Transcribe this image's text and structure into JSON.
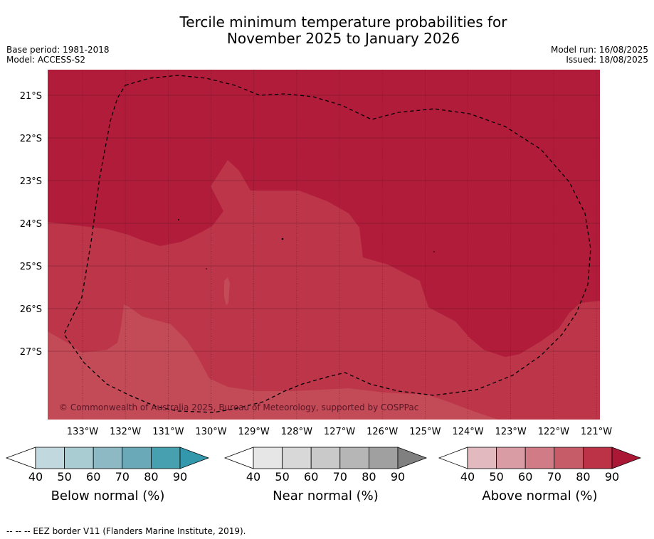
{
  "title_line1": "Tercile minimum temperature probabilities for",
  "title_line2": "November 2025 to January 2026",
  "base_period": "Base period: 1981-2018",
  "model": "Model: ACCESS-S2",
  "model_run": "Model run: 16/08/2025",
  "issued": "Issued: 18/08/2025",
  "copyright": "© Commonwealth of Australia 2025, Bureau of Meteorology, supported by COSPPac",
  "footer": "--  --  -- EEZ border V11 (Flanders Marine Institute, 2019).",
  "lat_ticks": [
    "21°S",
    "22°S",
    "23°S",
    "24°S",
    "25°S",
    "26°S",
    "27°S"
  ],
  "lon_ticks": [
    "133°W",
    "132°W",
    "131°W",
    "130°W",
    "129°W",
    "128°W",
    "127°W",
    "126°W",
    "125°W",
    "124°W",
    "123°W",
    "122°W",
    "121°W"
  ],
  "colorbars": [
    {
      "label": "Below normal (%)",
      "ticks": [
        "40",
        "50",
        "60",
        "70",
        "80",
        "90"
      ],
      "colors": [
        "#ffffff",
        "#c1d9de",
        "#a9cbd2",
        "#8db9c4",
        "#6aa9b7",
        "#46a0b0",
        "#3398ab"
      ]
    },
    {
      "label": "Near normal (%)",
      "ticks": [
        "40",
        "50",
        "60",
        "70",
        "80",
        "90"
      ],
      "colors": [
        "#ffffff",
        "#e6e6e6",
        "#d8d8d8",
        "#c9c9c9",
        "#b6b6b6",
        "#a0a0a0",
        "#808080"
      ]
    },
    {
      "label": "Above normal (%)",
      "ticks": [
        "40",
        "50",
        "60",
        "70",
        "80",
        "90"
      ],
      "colors": [
        "#ffffff",
        "#e3b9c0",
        "#d99ba4",
        "#d07b85",
        "#c75c69",
        "#bc3347",
        "#ab1836"
      ]
    }
  ],
  "map_colors": {
    "zone_80_90": "#b01c3a",
    "zone_70_80": "#bc3549",
    "zone_60_70": "#c24b57",
    "grid": "#5a1424",
    "eez": "#000000"
  }
}
